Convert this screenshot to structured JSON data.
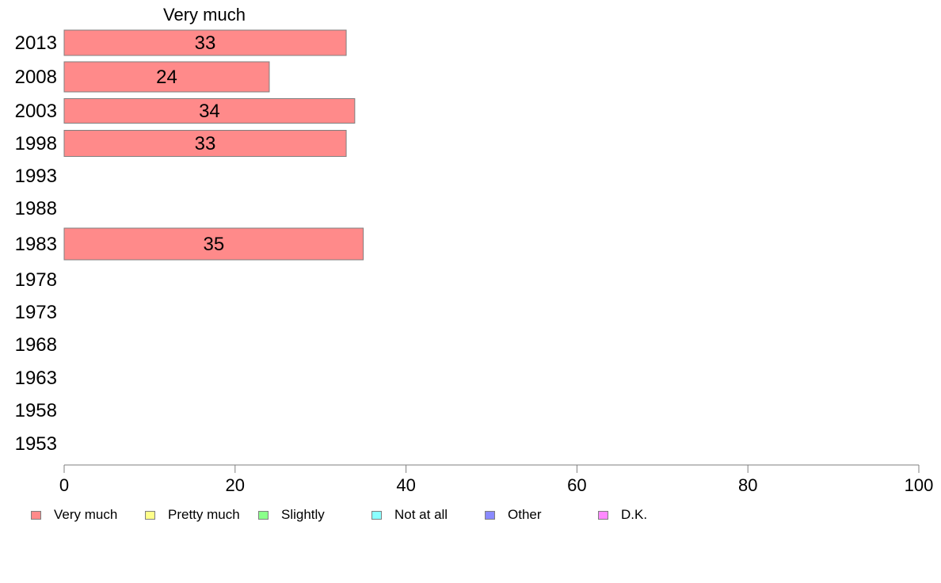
{
  "chart_data": {
    "type": "bar",
    "orientation": "horizontal",
    "title": "Very much",
    "categories": [
      "2013",
      "2008",
      "2003",
      "1998",
      "1993",
      "1988",
      "1983",
      "1978",
      "1973",
      "1968",
      "1963",
      "1958",
      "1953"
    ],
    "series": [
      {
        "name": "Very much",
        "color": "#ff8a8a",
        "values": [
          33,
          24,
          34,
          33,
          null,
          null,
          35,
          null,
          null,
          null,
          null,
          null,
          null
        ]
      }
    ],
    "xlim": [
      0,
      100
    ],
    "xticks": [
      0,
      20,
      40,
      60,
      80,
      100
    ],
    "grid": false,
    "legend_position": "bottom",
    "legend": [
      {
        "label": "Very much",
        "color": "#ff8a8a"
      },
      {
        "label": "Pretty much",
        "color": "#ffff8a"
      },
      {
        "label": "Slightly",
        "color": "#8aff8a"
      },
      {
        "label": "Not at all",
        "color": "#8affff"
      },
      {
        "label": "Other",
        "color": "#8a8aff"
      },
      {
        "label": "D.K.",
        "color": "#ff8aff"
      }
    ]
  }
}
